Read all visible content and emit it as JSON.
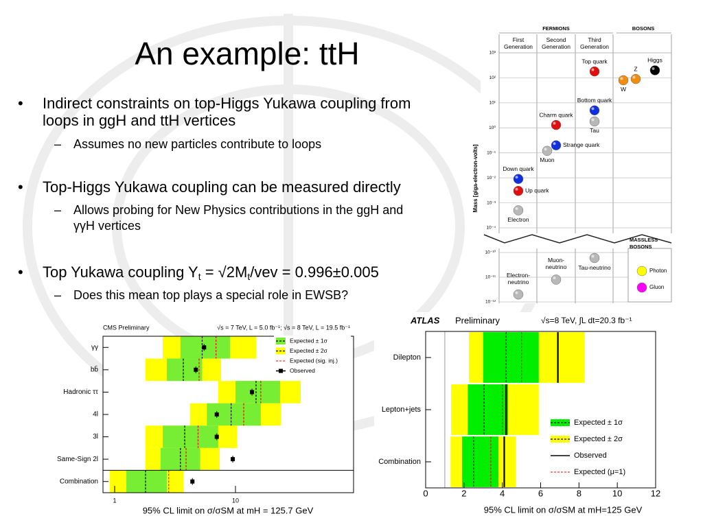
{
  "title": "An example: ttH",
  "bullets": [
    {
      "text": "Indirect constraints on top-Higgs Yukawa coupling from loops in ggH and ttH vertices",
      "sub": [
        "Assumes no new particles contribute to loops"
      ]
    },
    {
      "text": "Top-Higgs Yukawa coupling can be measured directly",
      "sub": [
        "Allows probing for New Physics contributions in the ggH and γγH vertices"
      ]
    },
    {
      "parts": [
        "Top Yukawa coupling Y",
        "t",
        " = √2M",
        "t",
        "/vev = 0.996±0.005"
      ],
      "sub": [
        "Does this mean top plays a special role in EWSB?"
      ]
    }
  ],
  "chart_data": [
    {
      "type": "limit",
      "header": [
        "CMS Preliminary",
        "√s = 7 TeV, L = 5.0 fb⁻¹; √s = 8 TeV, L = 19.5 fb⁻¹"
      ],
      "categories": [
        "γγ",
        "bb̄",
        "Hadronic ττ",
        "4l",
        "3l",
        "Same-Sign 2l",
        "Combination"
      ],
      "log_x": true,
      "xlim": [
        0.8,
        95
      ],
      "xticks": [
        1,
        10
      ],
      "xlabel": "95% CL limit on σ/σSM at mH = 125.7 GeV",
      "series": [
        {
          "name": "Expected ± 1σ",
          "color": "#77ee33",
          "low": [
            3.5,
            2.7,
            10,
            5.8,
            2.5,
            2.4,
            1.25
          ],
          "high": [
            9.0,
            5.3,
            23.4,
            16.2,
            7.2,
            5.1,
            2.7
          ],
          "median": [
            5.3,
            3.7,
            14.8,
            9.2,
            3.8,
            3.5,
            1.8
          ]
        },
        {
          "name": "Expected ± 2σ",
          "color": "#ffff00",
          "low": [
            2.5,
            1.8,
            7.2,
            4.2,
            1.8,
            1.8,
            0.91
          ],
          "high": [
            14.8,
            7.6,
            34.7,
            23.7,
            10.3,
            7.4,
            3.7
          ]
        },
        {
          "name": "Expected (sig. inj.)",
          "color": "#ff0000",
          "dashed": true,
          "values": [
            6.9,
            5.0,
            16.2,
            11.7,
            4.9,
            3.9,
            2.8
          ]
        },
        {
          "name": "Observed",
          "color": "#000000",
          "marker": "square",
          "values": [
            5.5,
            4.7,
            13.7,
            7.0,
            7.0,
            9.5,
            4.4
          ]
        }
      ]
    },
    {
      "type": "limit",
      "header": [
        "ATLAS",
        "Preliminary",
        "√s=8 TeV, ∫L dt=20.3 fb⁻¹"
      ],
      "categories": [
        "Dilepton",
        "Lepton+jets",
        "Combination"
      ],
      "log_x": false,
      "xlim": [
        0,
        12
      ],
      "xticks": [
        0,
        2,
        4,
        6,
        8,
        10,
        12
      ],
      "reference_line": 1,
      "xlabel": "95% CL limit on σ/σSM at mH=125 GeV",
      "series": [
        {
          "name": "Expected ± 1σ",
          "color": "#00ee00",
          "low": [
            3.0,
            2.2,
            1.9
          ],
          "high": [
            5.9,
            4.3,
            3.8
          ],
          "median": [
            4.2,
            3.05,
            2.5
          ]
        },
        {
          "name": "Expected ± 2σ",
          "color": "#ffff00",
          "low": [
            2.26,
            1.33,
            1.3
          ],
          "high": [
            8.3,
            5.9,
            4.7
          ]
        },
        {
          "name": "Observed",
          "color": "#000000",
          "values": [
            6.9,
            4.2,
            4.1
          ]
        },
        {
          "name": "Expected (μ=1)",
          "color": "#ff0000",
          "dashed": true,
          "values": [
            5.0,
            4.0,
            3.4
          ]
        }
      ]
    },
    {
      "type": "scatter",
      "fermions": "FERMIONS",
      "bosons": "BOSONS",
      "columns": [
        "First Generation",
        "Second Generation",
        "Third Generation"
      ],
      "ylabel": "Mass [giga-electron-volts]",
      "log_y": true,
      "ylim": [
        1e-12,
        1000
      ],
      "axis_break": [
        1e-10,
        0.0001
      ],
      "yticks": [
        {
          "value": 1000,
          "label": "10³"
        },
        {
          "value": 100,
          "label": "10²"
        },
        {
          "value": 10,
          "label": "10¹"
        },
        {
          "value": 1,
          "label": "10⁰"
        },
        {
          "value": 0.1,
          "label": "10⁻¹"
        },
        {
          "value": 0.01,
          "label": "10⁻²"
        },
        {
          "value": 0.001,
          "label": "10⁻³"
        },
        {
          "value": 0.0001,
          "label": "10⁻⁴"
        },
        {
          "value": 1e-10,
          "label": "10⁻¹⁰"
        },
        {
          "value": 1e-11,
          "label": "10⁻¹¹"
        },
        {
          "value": 1e-12,
          "label": "10⁻¹²"
        }
      ],
      "particles": [
        {
          "name": "Top quark",
          "group": "Third Generation",
          "mass": 180,
          "color": "#e01010"
        },
        {
          "name": "Bottom quark",
          "group": "Third Generation",
          "mass": 5,
          "color": "#1030e0"
        },
        {
          "name": "Tau",
          "group": "Third Generation",
          "mass": 1.8,
          "color": "#b8b8b8"
        },
        {
          "name": "Charm quark",
          "group": "Second Generation",
          "mass": 1.3,
          "color": "#e01010"
        },
        {
          "name": "Strange quark",
          "group": "Second Generation",
          "mass": 0.2,
          "color": "#1030e0"
        },
        {
          "name": "Muon",
          "group": "Second Generation",
          "mass": 0.12,
          "color": "#b8b8b8"
        },
        {
          "name": "Down quark",
          "group": "First Generation",
          "mass": 0.009,
          "color": "#1030e0"
        },
        {
          "name": "Up quark",
          "group": "First Generation",
          "mass": 0.003,
          "color": "#e01010"
        },
        {
          "name": "Electron",
          "group": "First Generation",
          "mass": 0.0005,
          "color": "#b8b8b8"
        },
        {
          "name": "W",
          "group": "BOSONS",
          "mass": 80,
          "color": "#f08c10"
        },
        {
          "name": "Z",
          "group": "BOSONS",
          "mass": 90,
          "color": "#f08c10"
        },
        {
          "name": "Higgs",
          "group": "BOSONS",
          "mass": 200,
          "color": "#000000"
        },
        {
          "name": "Electron-neutrino",
          "group": "First Generation",
          "mass": 2e-12,
          "color": "#b8b8b8"
        },
        {
          "name": "Muon-neutrino",
          "group": "Second Generation",
          "mass": 8e-12,
          "color": "#b8b8b8"
        },
        {
          "name": "Tau-neutrino",
          "group": "Third Generation",
          "mass": 6e-11,
          "color": "#b8b8b8"
        }
      ],
      "massless": {
        "title": "MASSLESS BOSONS",
        "particles": [
          {
            "name": "Photon",
            "color": "#ffff00"
          },
          {
            "name": "Gluon",
            "color": "#ff00ff"
          }
        ]
      }
    }
  ]
}
